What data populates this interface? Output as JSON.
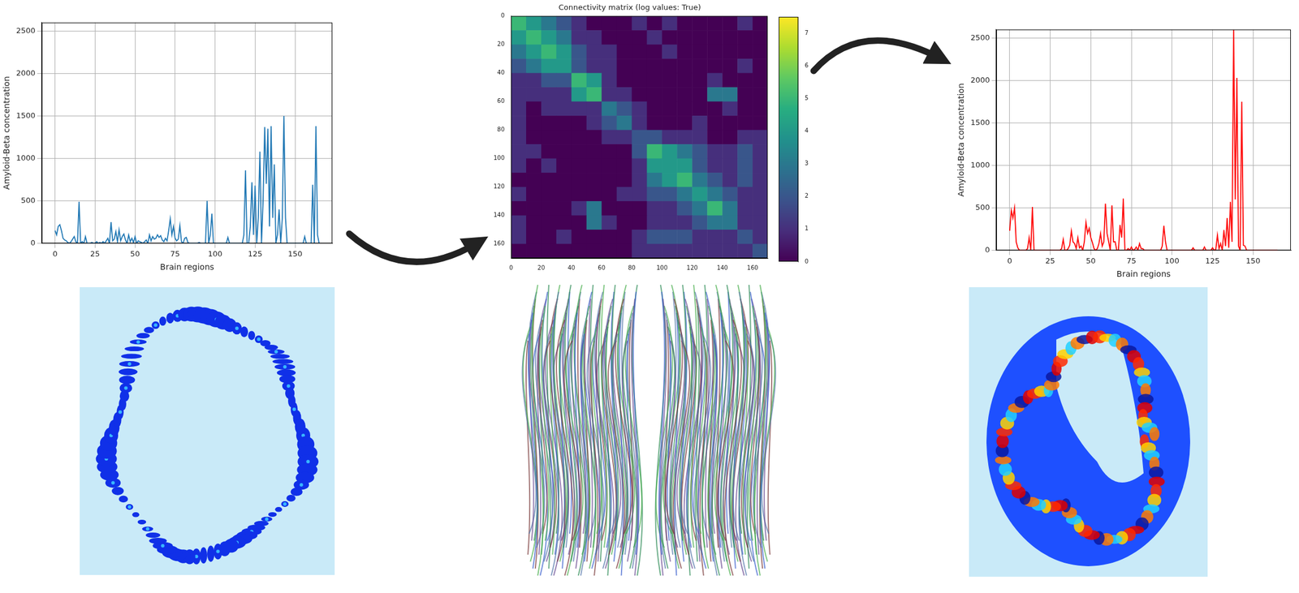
{
  "chart_data": [
    {
      "type": "line",
      "x_label": "Brain regions",
      "y_label": "Amyloid-Beta concentration",
      "color": "#1f77b4",
      "grid": true,
      "xlim": [
        -8.25,
        173.25
      ],
      "ylim": [
        0,
        2600
      ],
      "xticks": [
        0,
        25,
        50,
        75,
        100,
        125,
        150
      ],
      "yticks": [
        0,
        500,
        1000,
        1500,
        2000,
        2500
      ],
      "x": [
        0,
        1,
        2,
        3,
        4,
        5,
        6,
        7,
        8,
        9,
        10,
        11,
        12,
        13,
        14,
        15,
        16,
        17,
        18,
        19,
        20,
        21,
        22,
        23,
        24,
        25,
        26,
        27,
        28,
        29,
        30,
        31,
        32,
        33,
        34,
        35,
        36,
        37,
        38,
        39,
        40,
        41,
        42,
        43,
        44,
        45,
        46,
        47,
        48,
        49,
        50,
        51,
        52,
        53,
        54,
        55,
        56,
        57,
        58,
        59,
        60,
        61,
        62,
        63,
        64,
        65,
        66,
        67,
        68,
        69,
        70,
        71,
        72,
        73,
        74,
        75,
        76,
        77,
        78,
        79,
        80,
        81,
        82,
        83,
        84,
        85,
        86,
        87,
        88,
        89,
        90,
        91,
        92,
        93,
        94,
        95,
        96,
        97,
        98,
        99,
        100,
        101,
        102,
        103,
        104,
        105,
        106,
        107,
        108,
        109,
        110,
        111,
        112,
        113,
        114,
        115,
        116,
        117,
        118,
        119,
        120,
        121,
        122,
        123,
        124,
        125,
        126,
        127,
        128,
        129,
        130,
        131,
        132,
        133,
        134,
        135,
        136,
        137,
        138,
        139,
        140,
        141,
        142,
        143,
        144,
        145,
        146,
        147,
        148,
        149,
        150,
        151,
        152,
        153,
        154,
        155,
        156,
        157,
        158,
        159,
        160,
        161,
        162,
        163,
        164,
        165
      ],
      "values": [
        150,
        100,
        200,
        220,
        150,
        60,
        40,
        30,
        10,
        0,
        20,
        50,
        80,
        20,
        0,
        490,
        0,
        20,
        0,
        80,
        0,
        0,
        0,
        10,
        0,
        0,
        20,
        0,
        10,
        0,
        20,
        0,
        30,
        60,
        0,
        250,
        30,
        50,
        140,
        20,
        160,
        30,
        80,
        110,
        40,
        0,
        100,
        20,
        60,
        10,
        80,
        0,
        30,
        20,
        10,
        0,
        20,
        40,
        0,
        100,
        30,
        80,
        50,
        60,
        100,
        70,
        90,
        40,
        20,
        60,
        30,
        150,
        290,
        100,
        200,
        60,
        30,
        50,
        210,
        20,
        0,
        60,
        70,
        10,
        0,
        0,
        0,
        0,
        0,
        0,
        10,
        0,
        0,
        0,
        0,
        500,
        0,
        100,
        350,
        0,
        0,
        0,
        0,
        0,
        0,
        0,
        0,
        0,
        70,
        0,
        0,
        0,
        0,
        0,
        0,
        0,
        0,
        0,
        100,
        860,
        0,
        0,
        200,
        720,
        100,
        680,
        0,
        300,
        1080,
        0,
        500,
        1370,
        700,
        1350,
        200,
        1380,
        300,
        930,
        0,
        100,
        400,
        0,
        300,
        1500,
        300,
        0,
        0,
        0,
        0,
        0,
        0,
        0,
        0,
        0,
        0,
        0,
        80,
        0,
        0,
        0,
        0,
        690,
        0,
        1380,
        100,
        0
      ]
    },
    {
      "type": "heatmap",
      "title": "Connectivity matrix (log values: True)",
      "xlim": [
        0,
        170
      ],
      "ylim": [
        170,
        0
      ],
      "xticks": [
        0,
        20,
        40,
        60,
        80,
        100,
        120,
        140,
        160
      ],
      "yticks": [
        0,
        20,
        40,
        60,
        80,
        100,
        120,
        140,
        160
      ],
      "cell_edges": [
        0,
        10,
        20,
        30,
        40,
        50,
        60,
        70,
        80,
        90,
        100,
        110,
        120,
        130,
        140,
        150,
        160,
        170
      ],
      "cells": [
        [
          5,
          4,
          3,
          2,
          1,
          0,
          0,
          0,
          1,
          0,
          1,
          0,
          0,
          0,
          0,
          1,
          0
        ],
        [
          4,
          5,
          4,
          3,
          1,
          1,
          0,
          0,
          0,
          1,
          0,
          0,
          0,
          0,
          0,
          0,
          0
        ],
        [
          3,
          4,
          5,
          4,
          2,
          1,
          1,
          0,
          0,
          0,
          1,
          0,
          0,
          0,
          0,
          0,
          0
        ],
        [
          2,
          3,
          4,
          4,
          2,
          1,
          1,
          0,
          0,
          0,
          0,
          0,
          0,
          0,
          0,
          1,
          0
        ],
        [
          1,
          1,
          2,
          2,
          5,
          4,
          1,
          0,
          0,
          0,
          0,
          0,
          0,
          1,
          0,
          0,
          0
        ],
        [
          1,
          1,
          1,
          1,
          4,
          5,
          1,
          1,
          0,
          0,
          0,
          0,
          0,
          3,
          3,
          0,
          0
        ],
        [
          1,
          0,
          1,
          1,
          1,
          1,
          3,
          2,
          1,
          0,
          0,
          0,
          0,
          0,
          1,
          0,
          0
        ],
        [
          1,
          0,
          0,
          0,
          0,
          1,
          2,
          3,
          1,
          0,
          0,
          0,
          1,
          0,
          0,
          0,
          0
        ],
        [
          1,
          0,
          0,
          0,
          0,
          0,
          1,
          1,
          2,
          2,
          1,
          1,
          1,
          0,
          0,
          1,
          1
        ],
        [
          1,
          1,
          0,
          0,
          0,
          0,
          0,
          0,
          2,
          5,
          4,
          3,
          2,
          1,
          1,
          2,
          1
        ],
        [
          1,
          0,
          1,
          0,
          0,
          0,
          0,
          0,
          1,
          4,
          4,
          4,
          2,
          1,
          1,
          2,
          1
        ],
        [
          0,
          0,
          0,
          0,
          0,
          0,
          0,
          0,
          1,
          3,
          4,
          5,
          3,
          2,
          1,
          2,
          1
        ],
        [
          1,
          0,
          0,
          0,
          0,
          0,
          0,
          1,
          1,
          2,
          2,
          3,
          4,
          3,
          2,
          1,
          1
        ],
        [
          0,
          0,
          0,
          0,
          1,
          3,
          0,
          0,
          0,
          1,
          1,
          2,
          3,
          5,
          3,
          1,
          1
        ],
        [
          1,
          0,
          0,
          0,
          0,
          3,
          1,
          0,
          0,
          1,
          1,
          1,
          2,
          3,
          3,
          1,
          1
        ],
        [
          1,
          0,
          0,
          1,
          0,
          0,
          0,
          0,
          1,
          2,
          2,
          2,
          1,
          1,
          1,
          2,
          1
        ],
        [
          0,
          0,
          0,
          0,
          0,
          0,
          0,
          0,
          1,
          1,
          1,
          1,
          1,
          1,
          1,
          1,
          2
        ]
      ],
      "colorbar": {
        "range": [
          0,
          7.5
        ],
        "ticks": [
          0,
          1,
          2,
          3,
          4,
          5,
          6,
          7
        ]
      }
    },
    {
      "type": "line",
      "x_label": "Brain regions",
      "y_label": "Amyloid-Beta concentration",
      "color": "#ff0000",
      "grid": true,
      "xlim": [
        -8.25,
        173.25
      ],
      "ylim": [
        0,
        2600
      ],
      "xticks": [
        0,
        25,
        50,
        75,
        100,
        125,
        150
      ],
      "yticks": [
        0,
        500,
        1000,
        1500,
        2000,
        2500
      ],
      "x": [
        0,
        1,
        2,
        3,
        4,
        5,
        6,
        7,
        8,
        9,
        10,
        11,
        12,
        13,
        14,
        15,
        16,
        17,
        18,
        19,
        20,
        21,
        22,
        23,
        24,
        25,
        26,
        27,
        28,
        29,
        30,
        31,
        32,
        33,
        34,
        35,
        36,
        37,
        38,
        39,
        40,
        41,
        42,
        43,
        44,
        45,
        46,
        47,
        48,
        49,
        50,
        51,
        52,
        53,
        54,
        55,
        56,
        57,
        58,
        59,
        60,
        61,
        62,
        63,
        64,
        65,
        66,
        67,
        68,
        69,
        70,
        71,
        72,
        73,
        74,
        75,
        76,
        77,
        78,
        79,
        80,
        81,
        82,
        83,
        84,
        85,
        86,
        87,
        88,
        89,
        90,
        91,
        92,
        93,
        94,
        95,
        96,
        97,
        98,
        99,
        100,
        101,
        102,
        103,
        104,
        105,
        106,
        107,
        108,
        109,
        110,
        111,
        112,
        113,
        114,
        115,
        116,
        117,
        118,
        119,
        120,
        121,
        122,
        123,
        124,
        125,
        126,
        127,
        128,
        129,
        130,
        131,
        132,
        133,
        134,
        135,
        136,
        137,
        138,
        139,
        140,
        141,
        142,
        143,
        144,
        145,
        146,
        147,
        148,
        149,
        150,
        151,
        152,
        153,
        154,
        155,
        156,
        157,
        158,
        159,
        160,
        161,
        162,
        163,
        164,
        165
      ],
      "values": [
        230,
        470,
        380,
        500,
        100,
        30,
        0,
        0,
        0,
        0,
        0,
        20,
        150,
        0,
        510,
        0,
        0,
        0,
        0,
        0,
        0,
        0,
        0,
        0,
        0,
        0,
        0,
        0,
        0,
        0,
        0,
        0,
        20,
        130,
        0,
        0,
        20,
        60,
        230,
        100,
        80,
        20,
        150,
        30,
        50,
        0,
        100,
        330,
        200,
        260,
        150,
        90,
        20,
        0,
        20,
        80,
        200,
        50,
        100,
        550,
        200,
        100,
        0,
        530,
        100,
        100,
        0,
        0,
        300,
        150,
        610,
        0,
        0,
        20,
        0,
        40,
        0,
        10,
        40,
        0,
        80,
        20,
        20,
        0,
        0,
        0,
        0,
        0,
        0,
        0,
        0,
        0,
        0,
        0,
        50,
        290,
        100,
        0,
        0,
        0,
        0,
        0,
        0,
        0,
        0,
        0,
        0,
        0,
        0,
        0,
        0,
        0,
        0,
        30,
        0,
        0,
        0,
        0,
        0,
        0,
        40,
        0,
        0,
        0,
        0,
        30,
        0,
        10,
        180,
        20,
        80,
        0,
        240,
        50,
        380,
        30,
        570,
        100,
        2600,
        600,
        2030,
        50,
        0,
        1750,
        60,
        50,
        0,
        0,
        0,
        0,
        0,
        0,
        0,
        0,
        0,
        0,
        0,
        0,
        0,
        0,
        0,
        0,
        0,
        0,
        0,
        0
      ]
    }
  ]
}
